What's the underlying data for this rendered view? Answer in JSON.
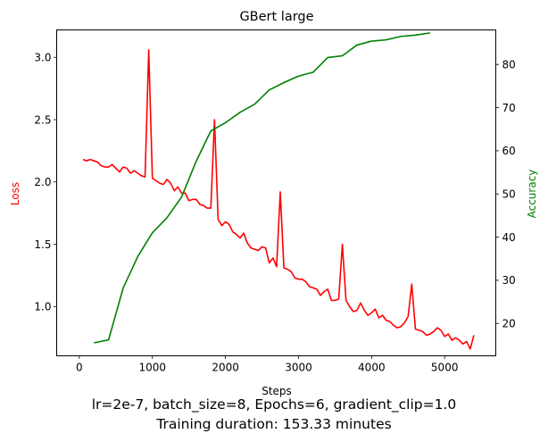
{
  "chart_data": {
    "type": "line",
    "title": "GBert large",
    "xlabel": "Steps",
    "ylabel_left": "Loss",
    "ylabel_right": "Accuracy",
    "xlim": [
      -310,
      5700
    ],
    "ylim_left": [
      0.605,
      3.22
    ],
    "ylim_right": [
      12.5,
      88
    ],
    "x_ticks": [
      0,
      1000,
      2000,
      3000,
      4000,
      5000
    ],
    "y_ticks_left": [
      1.0,
      1.5,
      2.0,
      2.5,
      3.0
    ],
    "y_ticks_right": [
      20,
      30,
      40,
      50,
      60,
      70,
      80
    ],
    "grid": false,
    "colors": {
      "loss": "#ff0000",
      "accuracy": "#008000",
      "loss_label": "#ff0000",
      "accuracy_label": "#008000"
    },
    "series": [
      {
        "axis": "left",
        "color": "#ff0000",
        "x": [
          50,
          100,
          150,
          200,
          250,
          300,
          350,
          400,
          450,
          500,
          550,
          600,
          650,
          700,
          750,
          800,
          850,
          900,
          950,
          1000,
          1050,
          1100,
          1150,
          1200,
          1250,
          1300,
          1350,
          1400,
          1450,
          1500,
          1550,
          1600,
          1650,
          1700,
          1750,
          1800,
          1850,
          1900,
          1950,
          2000,
          2050,
          2100,
          2150,
          2200,
          2250,
          2300,
          2350,
          2400,
          2450,
          2500,
          2550,
          2600,
          2650,
          2700,
          2750,
          2800,
          2850,
          2900,
          2950,
          3000,
          3050,
          3100,
          3150,
          3200,
          3250,
          3300,
          3350,
          3400,
          3450,
          3500,
          3550,
          3600,
          3650,
          3700,
          3750,
          3800,
          3850,
          3900,
          3950,
          4000,
          4050,
          4100,
          4150,
          4200,
          4250,
          4300,
          4350,
          4400,
          4450,
          4500,
          4550,
          4600,
          4650,
          4700,
          4750,
          4800,
          4850,
          4900,
          4950,
          5000,
          5050,
          5100,
          5150,
          5200,
          5250,
          5300,
          5350,
          5400
        ],
        "y": [
          2.18,
          2.17,
          2.18,
          2.17,
          2.16,
          2.13,
          2.12,
          2.12,
          2.14,
          2.11,
          2.08,
          2.12,
          2.11,
          2.07,
          2.09,
          2.07,
          2.05,
          2.04,
          3.06,
          2.03,
          2.01,
          1.99,
          1.98,
          2.02,
          1.99,
          1.93,
          1.96,
          1.91,
          1.91,
          1.85,
          1.86,
          1.86,
          1.82,
          1.81,
          1.79,
          1.79,
          2.5,
          1.7,
          1.65,
          1.68,
          1.66,
          1.6,
          1.58,
          1.55,
          1.59,
          1.51,
          1.47,
          1.46,
          1.45,
          1.48,
          1.47,
          1.35,
          1.39,
          1.32,
          1.92,
          1.31,
          1.3,
          1.28,
          1.23,
          1.22,
          1.22,
          1.2,
          1.16,
          1.15,
          1.14,
          1.09,
          1.12,
          1.14,
          1.05,
          1.05,
          1.06,
          1.5,
          1.05,
          1.0,
          0.96,
          0.97,
          1.03,
          0.97,
          0.93,
          0.95,
          0.98,
          0.91,
          0.93,
          0.89,
          0.88,
          0.85,
          0.83,
          0.84,
          0.87,
          0.92,
          1.18,
          0.82,
          0.81,
          0.8,
          0.77,
          0.78,
          0.8,
          0.83,
          0.81,
          0.76,
          0.78,
          0.73,
          0.75,
          0.73,
          0.7,
          0.72,
          0.66,
          0.77
        ]
      },
      {
        "axis": "right",
        "color": "#008000",
        "x": [
          200,
          400,
          600,
          800,
          1000,
          1200,
          1400,
          1600,
          1800,
          2000,
          2200,
          2400,
          2600,
          2800,
          3000,
          3200,
          3400,
          3600,
          3800,
          4000,
          4200,
          4400,
          4600,
          4800
        ],
        "y": [
          15.5,
          16.2,
          28.2,
          35.5,
          41.0,
          44.5,
          49.3,
          57.6,
          64.6,
          66.5,
          68.9,
          70.8,
          74.1,
          75.8,
          77.3,
          78.2,
          81.6,
          82.0,
          84.5,
          85.4,
          85.7,
          86.5,
          86.8,
          87.3
        ]
      }
    ]
  },
  "caption": {
    "line1": "lr=2e-7, batch_size=8, Epochs=6, gradient_clip=1.0",
    "line2": "Training duration: 153.33 minutes"
  }
}
